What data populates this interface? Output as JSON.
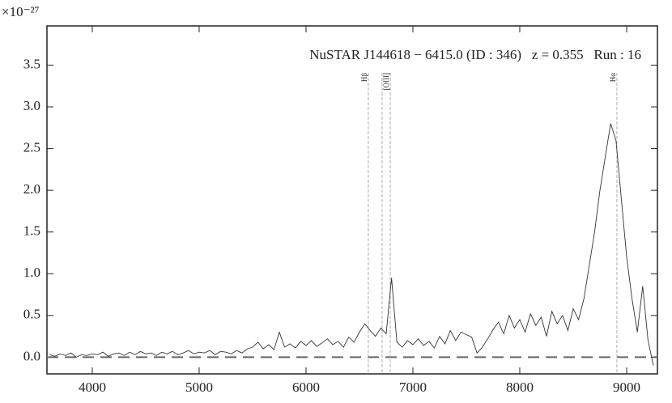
{
  "chart_data": {
    "type": "line",
    "title": "NuSTAR J144618 − 6415.0 (ID : 346)   z = 0.355   Run : 16",
    "multiplier": "×10⁻²⁷",
    "x": [
      3600,
      3650,
      3700,
      3750,
      3800,
      3850,
      3900,
      3950,
      4000,
      4050,
      4100,
      4150,
      4200,
      4250,
      4300,
      4350,
      4400,
      4450,
      4500,
      4550,
      4600,
      4650,
      4700,
      4750,
      4800,
      4850,
      4900,
      4950,
      5000,
      5050,
      5100,
      5150,
      5200,
      5250,
      5300,
      5350,
      5400,
      5450,
      5500,
      5550,
      5600,
      5650,
      5700,
      5750,
      5800,
      5850,
      5900,
      5950,
      6000,
      6050,
      6100,
      6150,
      6200,
      6250,
      6300,
      6350,
      6400,
      6450,
      6500,
      6550,
      6600,
      6650,
      6700,
      6750,
      6800,
      6850,
      6900,
      6950,
      7000,
      7050,
      7100,
      7150,
      7200,
      7250,
      7300,
      7350,
      7400,
      7450,
      7500,
      7550,
      7600,
      7650,
      7700,
      7750,
      7800,
      7850,
      7900,
      7950,
      8000,
      8050,
      8100,
      8150,
      8200,
      8250,
      8300,
      8350,
      8400,
      8450,
      8500,
      8550,
      8600,
      8650,
      8700,
      8750,
      8800,
      8850,
      8900,
      8950,
      9000,
      9050,
      9100,
      9150,
      9200,
      9250
    ],
    "series": [
      {
        "color": "#333333",
        "values": [
          0.03,
          0.01,
          0.04,
          0.02,
          0.05,
          0.0,
          0.03,
          0.02,
          0.04,
          0.03,
          0.06,
          0.01,
          0.04,
          0.05,
          0.02,
          0.06,
          0.03,
          0.07,
          0.04,
          0.05,
          0.02,
          0.06,
          0.04,
          0.07,
          0.03,
          0.05,
          0.08,
          0.04,
          0.06,
          0.05,
          0.08,
          0.03,
          0.07,
          0.06,
          0.04,
          0.08,
          0.05,
          0.1,
          0.12,
          0.18,
          0.1,
          0.15,
          0.09,
          0.3,
          0.12,
          0.16,
          0.11,
          0.19,
          0.14,
          0.2,
          0.13,
          0.17,
          0.22,
          0.15,
          0.19,
          0.12,
          0.24,
          0.18,
          0.3,
          0.4,
          0.32,
          0.25,
          0.35,
          0.28,
          0.95,
          0.18,
          0.12,
          0.2,
          0.15,
          0.22,
          0.14,
          0.19,
          0.11,
          0.25,
          0.16,
          0.32,
          0.2,
          0.3,
          0.27,
          0.24,
          0.05,
          0.12,
          0.22,
          0.33,
          0.42,
          0.28,
          0.5,
          0.35,
          0.45,
          0.3,
          0.52,
          0.38,
          0.48,
          0.25,
          0.55,
          0.4,
          0.5,
          0.32,
          0.58,
          0.45,
          0.7,
          1.1,
          1.5,
          2.0,
          2.4,
          2.8,
          2.6,
          1.9,
          1.2,
          0.7,
          0.3,
          0.85,
          0.2,
          -0.1
        ]
      }
    ],
    "reference_line": 0,
    "lines": [
      {
        "x": 6583,
        "label": "Hβ"
      },
      {
        "x": 6712
      },
      {
        "x": 6788,
        "label": "[OIII]"
      },
      {
        "x": 8909,
        "label": "Hα"
      }
    ],
    "xlim": [
      3576,
      9288
    ],
    "ylim": [
      -0.2,
      3.97
    ],
    "xticks": [
      4000,
      5000,
      6000,
      7000,
      8000,
      9000
    ],
    "yticks": [
      {
        "value": 0,
        "label": "0.0"
      },
      {
        "value": 0.5,
        "label": "0.5"
      },
      {
        "value": 1,
        "label": "1.0"
      },
      {
        "value": 1.5,
        "label": "1.5"
      },
      {
        "value": 2,
        "label": "2.0"
      },
      {
        "value": 2.5,
        "label": "2.5"
      },
      {
        "value": 3,
        "label": "3.0"
      },
      {
        "value": 3.5,
        "label": "3.5"
      }
    ]
  }
}
